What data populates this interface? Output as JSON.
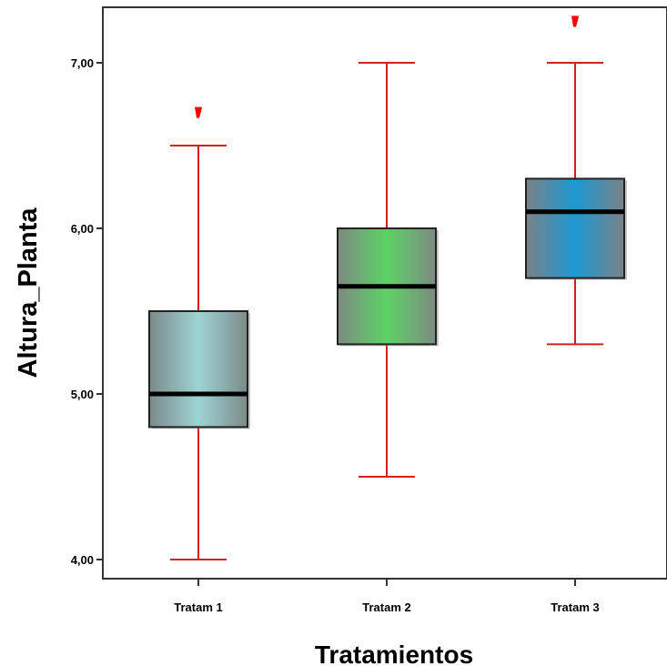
{
  "chart_data": {
    "type": "boxplot",
    "title": "",
    "xlabel": "Tratamientos",
    "ylabel": "Altura_Planta",
    "ylim": [
      3.85,
      7.35
    ],
    "yticks": [
      4.0,
      5.0,
      6.0,
      7.0
    ],
    "ytick_labels": [
      "4,00",
      "5,00",
      "6,00",
      "7,00"
    ],
    "grid": false,
    "legend": "none",
    "whisker_color": "#d42020",
    "outlier_color": "#ff0000",
    "categories": [
      "Tratam 1",
      "Tratam 2",
      "Tratam 3"
    ],
    "boxes": [
      {
        "category": "Tratam 1",
        "whisker_low": 4.0,
        "q1": 4.8,
        "median": 5.0,
        "q3": 5.5,
        "whisker_high": 6.5,
        "outliers": [
          6.7
        ],
        "color_edge": "#7c8a8a",
        "color_center": "#9fd3d3"
      },
      {
        "category": "Tratam 2",
        "whisker_low": 4.5,
        "q1": 5.3,
        "median": 5.65,
        "q3": 6.0,
        "whisker_high": 7.0,
        "outliers": [],
        "color_edge": "#7d8a82",
        "color_center": "#5ed266"
      },
      {
        "category": "Tratam 3",
        "whisker_low": 5.3,
        "q1": 5.7,
        "median": 6.1,
        "q3": 6.3,
        "whisker_high": 7.0,
        "outliers": [
          7.25
        ],
        "color_edge": "#7a8288",
        "color_center": "#1c98d0"
      }
    ]
  }
}
